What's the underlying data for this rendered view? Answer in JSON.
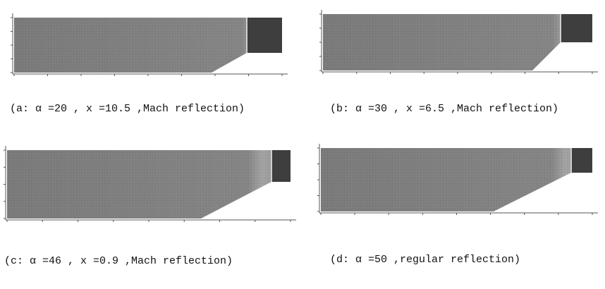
{
  "figure": {
    "panels": [
      {
        "caption": "(a: α =20 , x =10.5 ,Mach reflection)"
      },
      {
        "caption": "(b: α =30 , x =6.5 ,Mach reflection)"
      },
      {
        "caption": "(c: α =46 , x =0.9 ,Mach reflection)"
      },
      {
        "caption": "(d: α =50 ,regular reflection)"
      }
    ]
  }
}
